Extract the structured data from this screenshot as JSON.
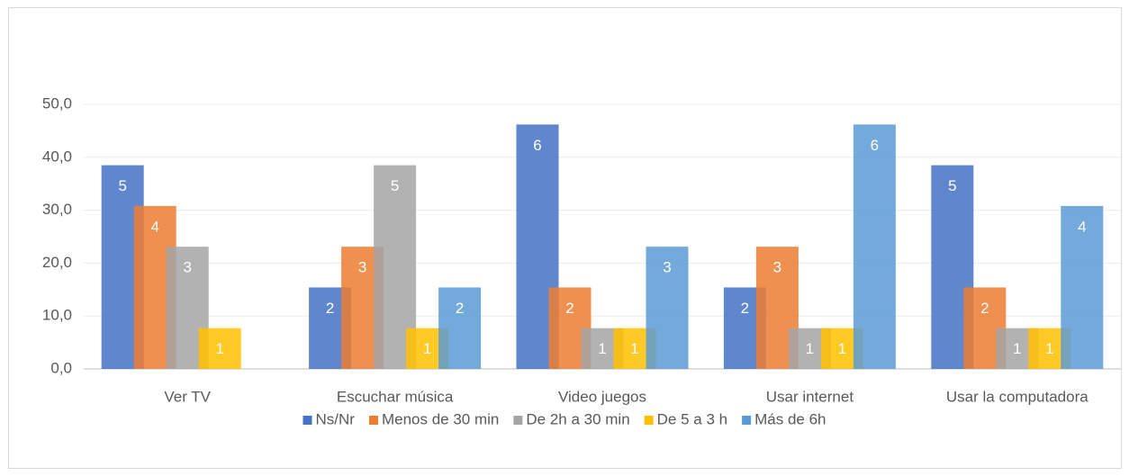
{
  "chart_data": {
    "type": "bar",
    "categories": [
      "Ver TV",
      "Escuchar música",
      "Video juegos",
      "Usar internet",
      "Usar la computadora"
    ],
    "series": [
      {
        "name": "Ns/Nr",
        "color": "#4472c4",
        "values": [
          38.5,
          15.4,
          46.2,
          15.4,
          38.5
        ],
        "counts": [
          5,
          2,
          6,
          2,
          5
        ]
      },
      {
        "name": "Menos de 30 min",
        "color": "#ed7d31",
        "values": [
          30.8,
          23.1,
          15.4,
          23.1,
          15.4
        ],
        "counts": [
          4,
          3,
          2,
          3,
          2
        ]
      },
      {
        "name": "De 2h a 30 min",
        "color": "#a5a5a5",
        "values": [
          23.1,
          38.5,
          7.7,
          7.7,
          7.7
        ],
        "counts": [
          3,
          5,
          1,
          1,
          1
        ]
      },
      {
        "name": "De 5 a 3 h",
        "color": "#ffc000",
        "values": [
          7.7,
          7.7,
          7.7,
          7.7,
          7.7
        ],
        "counts": [
          1,
          1,
          1,
          1,
          1
        ]
      },
      {
        "name": "Más de 6h",
        "color": "#5b9bd5",
        "values": [
          null,
          15.4,
          23.1,
          46.2,
          30.8
        ],
        "counts": [
          null,
          2,
          3,
          6,
          4
        ]
      }
    ],
    "ylim": [
      0,
      50
    ],
    "yticks": [
      {
        "value": 0,
        "label": "0,0"
      },
      {
        "value": 10,
        "label": "10,0"
      },
      {
        "value": 20,
        "label": "20,0"
      },
      {
        "value": 30,
        "label": "30,0"
      },
      {
        "value": 40,
        "label": "40,0"
      },
      {
        "value": 50,
        "label": "50,0"
      }
    ],
    "grid": true,
    "legend": "bottom"
  }
}
